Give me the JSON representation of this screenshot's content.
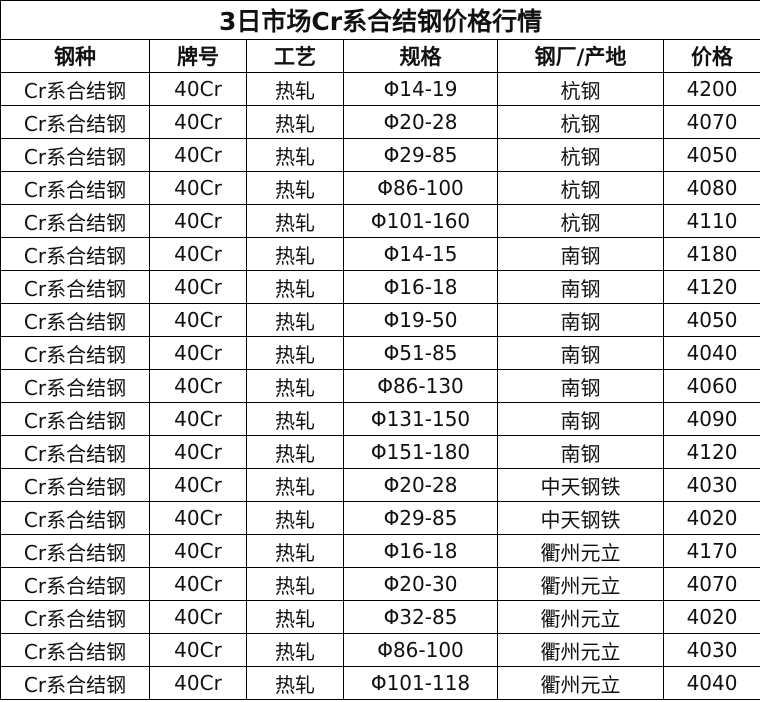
{
  "title": "3日市场Cr系合结钢价格行情",
  "headers": [
    "钢种",
    "牌号",
    "工艺",
    "规格",
    "钢厂/产地",
    "价格"
  ],
  "rows": [
    [
      "Cr系合结钢",
      "40Cr",
      "热轧",
      "Φ14-19",
      "杭钢",
      "4200"
    ],
    [
      "Cr系合结钢",
      "40Cr",
      "热轧",
      "Φ20-28",
      "杭钢",
      "4070"
    ],
    [
      "Cr系合结钢",
      "40Cr",
      "热轧",
      "Φ29-85",
      "杭钢",
      "4050"
    ],
    [
      "Cr系合结钢",
      "40Cr",
      "热轧",
      "Φ86-100",
      "杭钢",
      "4080"
    ],
    [
      "Cr系合结钢",
      "40Cr",
      "热轧",
      "Φ101-160",
      "杭钢",
      "4110"
    ],
    [
      "Cr系合结钢",
      "40Cr",
      "热轧",
      "Φ14-15",
      "南钢",
      "4180"
    ],
    [
      "Cr系合结钢",
      "40Cr",
      "热轧",
      "Φ16-18",
      "南钢",
      "4120"
    ],
    [
      "Cr系合结钢",
      "40Cr",
      "热轧",
      "Φ19-50",
      "南钢",
      "4050"
    ],
    [
      "Cr系合结钢",
      "40Cr",
      "热轧",
      "Φ51-85",
      "南钢",
      "4040"
    ],
    [
      "Cr系合结钢",
      "40Cr",
      "热轧",
      "Φ86-130",
      "南钢",
      "4060"
    ],
    [
      "Cr系合结钢",
      "40Cr",
      "热轧",
      "Φ131-150",
      "南钢",
      "4090"
    ],
    [
      "Cr系合结钢",
      "40Cr",
      "热轧",
      "Φ151-180",
      "南钢",
      "4120"
    ],
    [
      "Cr系合结钢",
      "40Cr",
      "热轧",
      "Φ20-28",
      "中天钢铁",
      "4030"
    ],
    [
      "Cr系合结钢",
      "40Cr",
      "热轧",
      "Φ29-85",
      "中天钢铁",
      "4020"
    ],
    [
      "Cr系合结钢",
      "40Cr",
      "热轧",
      "Φ16-18",
      "衢州元立",
      "4170"
    ],
    [
      "Cr系合结钢",
      "40Cr",
      "热轧",
      "Φ20-30",
      "衢州元立",
      "4070"
    ],
    [
      "Cr系合结钢",
      "40Cr",
      "热轧",
      "Φ32-85",
      "衢州元立",
      "4020"
    ],
    [
      "Cr系合结钢",
      "40Cr",
      "热轧",
      "Φ86-100",
      "衢州元立",
      "4030"
    ],
    [
      "Cr系合结钢",
      "40Cr",
      "热轧",
      "Φ101-118",
      "衢州元立",
      "4040"
    ]
  ]
}
